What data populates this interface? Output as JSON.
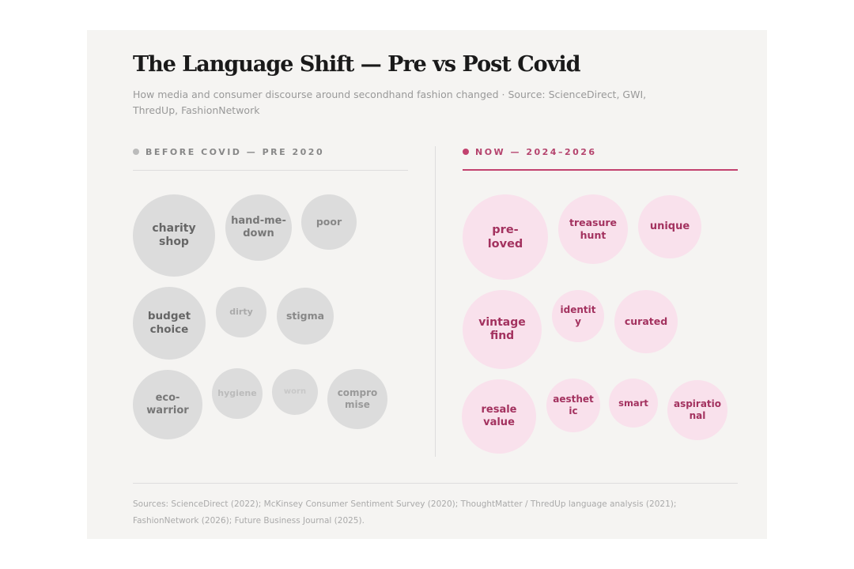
{
  "header": {
    "title": "The Language Shift — Pre vs Post Covid",
    "subtitle": "How media and consumer discourse around secondhand fashion changed · Source: ScienceDirect, GWI, ThredUp, FashionNetwork"
  },
  "before": {
    "heading": "BEFORE COVID — PRE 2020",
    "bubbles": [
      "charity shop",
      "hand-me-down",
      "poor",
      "budget choice",
      "dirty",
      "stigma",
      "eco-warrior",
      "hygiene",
      "worn",
      "compromise"
    ]
  },
  "now": {
    "heading": "NOW — 2024–2026",
    "bubbles": [
      "pre-loved",
      "treasure hunt",
      "unique",
      "vintage find",
      "identity",
      "curated",
      "resale value",
      "aesthetic",
      "smart",
      "aspirational"
    ]
  },
  "footer": {
    "sources": "Sources: ScienceDirect (2022); McKinsey Consumer Sentiment Survey (2020); ThoughtMatter / ThredUp language analysis (2021); FashionNetwork (2026); Future Business Journal (2025)."
  }
}
